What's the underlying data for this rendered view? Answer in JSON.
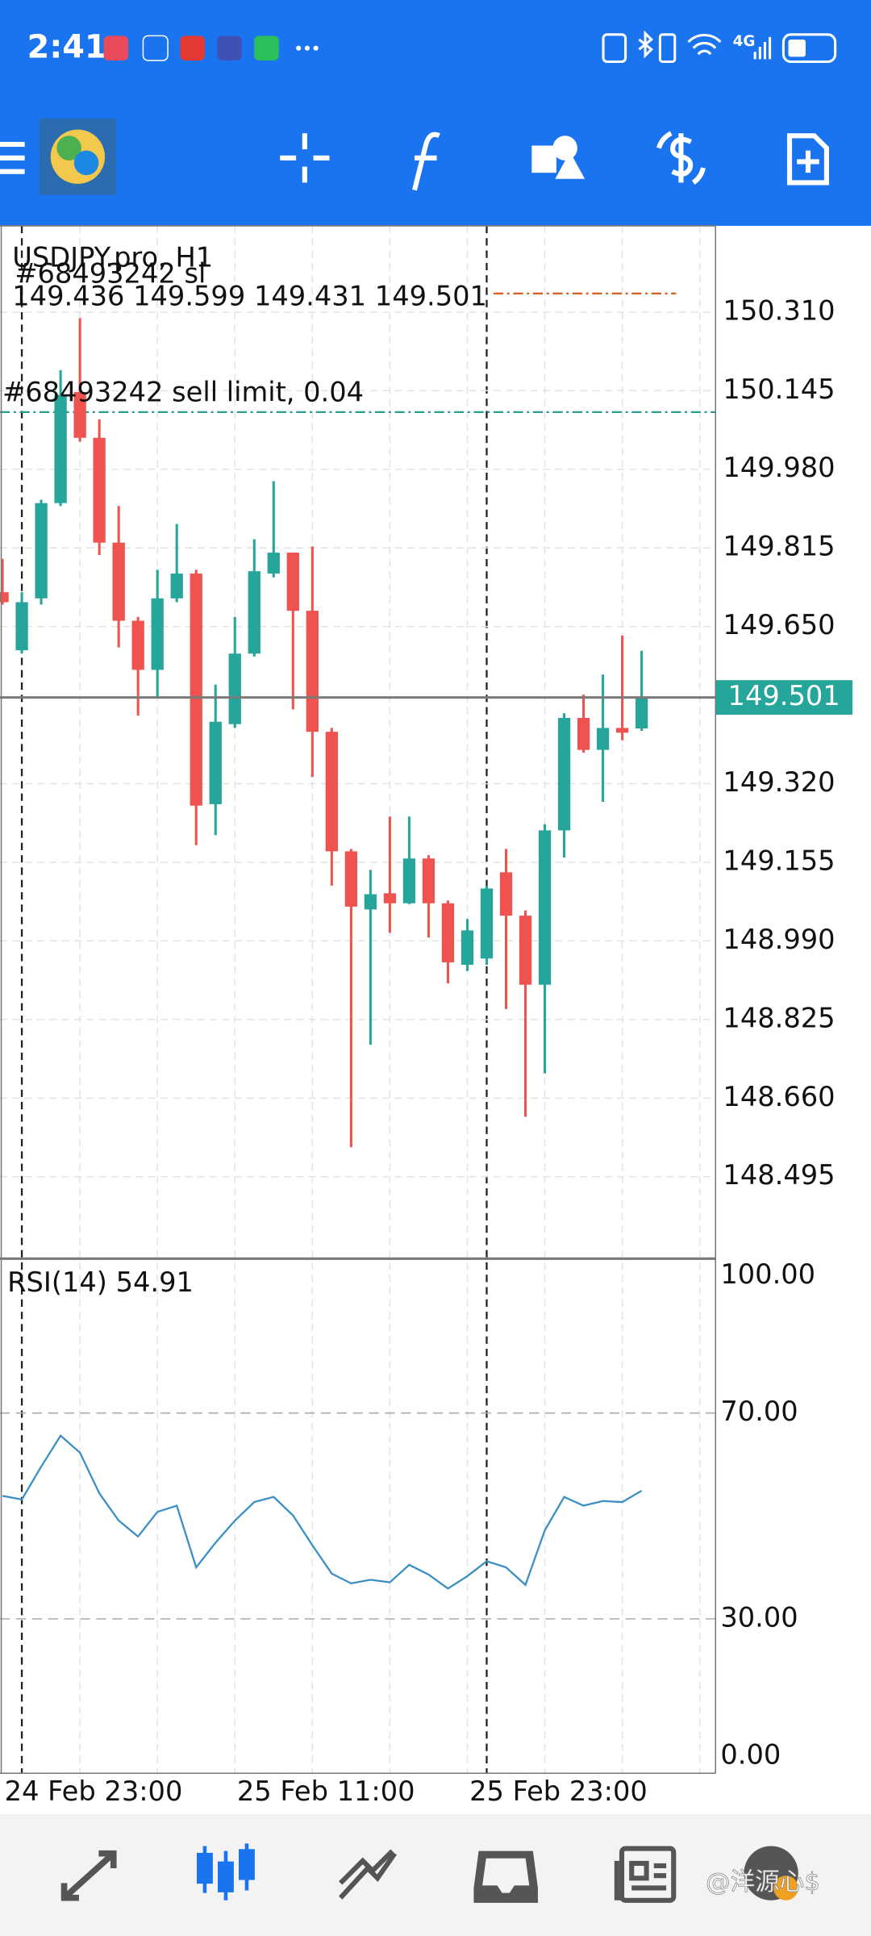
{
  "status_bar": {
    "time": "2:41",
    "network": "4G"
  },
  "watermark": "@洋源心$",
  "chart_data": [
    {
      "type": "candlestick",
      "title": "USDJPY.pro, H1",
      "categories": [
        null,
        "24 Feb 23:00",
        null,
        null,
        null,
        null,
        null,
        null,
        null,
        null,
        null,
        null,
        null,
        "25 Feb 11:00",
        null,
        null,
        null,
        null,
        null,
        null,
        null,
        null,
        null,
        null,
        null,
        "25 Feb 23:00",
        null,
        null,
        null,
        null,
        null,
        null,
        null,
        null
      ],
      "open": [
        149.722,
        149.6,
        149.709,
        149.909,
        150.142,
        150.046,
        149.826,
        149.662,
        149.559,
        149.709,
        149.761,
        149.277,
        149.445,
        149.593,
        149.761,
        149.805,
        149.683,
        149.429,
        149.178,
        149.056,
        149.09,
        149.069,
        149.163,
        149.069,
        148.94,
        148.953,
        149.134,
        149.043,
        148.898,
        149.222,
        149.458,
        149.391,
        149.437,
        149.436
      ],
      "high": [
        149.792,
        149.722,
        149.916,
        150.188,
        150.297,
        150.085,
        149.903,
        149.67,
        149.769,
        149.865,
        149.769,
        149.528,
        149.67,
        149.833,
        149.955,
        149.805,
        149.818,
        149.437,
        149.183,
        149.139,
        149.251,
        149.251,
        149.17,
        149.075,
        149.036,
        149.106,
        149.183,
        149.054,
        149.235,
        149.468,
        149.507,
        149.549,
        149.631,
        149.599
      ],
      "low": [
        149.696,
        149.593,
        149.696,
        149.903,
        150.038,
        149.8,
        149.606,
        149.463,
        149.502,
        149.701,
        149.191,
        149.212,
        149.437,
        149.587,
        149.753,
        149.476,
        149.334,
        149.106,
        148.557,
        148.772,
        149.007,
        149.067,
        148.997,
        148.901,
        148.927,
        148.94,
        148.847,
        148.621,
        148.712,
        149.165,
        149.385,
        149.282,
        149.411,
        149.431
      ],
      "close": [
        149.701,
        149.701,
        149.909,
        150.136,
        150.046,
        149.826,
        149.662,
        149.559,
        149.709,
        149.761,
        149.274,
        149.45,
        149.593,
        149.766,
        149.805,
        149.683,
        149.429,
        149.178,
        149.062,
        149.088,
        149.069,
        149.163,
        149.069,
        148.945,
        149.012,
        149.1,
        149.043,
        148.898,
        149.222,
        149.458,
        149.391,
        149.437,
        149.427,
        149.501
      ],
      "up_color": "#26a69a",
      "down_color": "#ef5350",
      "ylim": [
        148.323,
        150.491
      ],
      "yticks": [
        148.495,
        {
          "value": 148.66,
          "label": "148.660"
        },
        148.825,
        {
          "value": 148.99,
          "label": "148.990"
        },
        149.155,
        {
          "value": 149.32,
          "label": "149.320"
        },
        {
          "value": 149.65,
          "label": "149.650"
        },
        149.815,
        {
          "value": 149.98,
          "label": "149.980"
        },
        150.145,
        {
          "value": 150.31,
          "label": "150.310"
        }
      ],
      "grid": true,
      "orders": [
        {
          "label": "#68493242 sl",
          "price": 150.349,
          "color": "#d9622b"
        },
        {
          "label": "#68493242 sell limit, 0.04",
          "price": 150.1,
          "color": "#2a9d8f"
        }
      ]
    },
    {
      "type": "line",
      "title": "RSI(14)",
      "values": [
        53.9,
        53.2,
        59.6,
        65.6,
        62.3,
        54.4,
        49.1,
        46.0,
        50.8,
        52.0,
        40.0,
        44.8,
        49.1,
        52.7,
        53.7,
        50.1,
        44.3,
        38.8,
        36.9,
        37.6,
        37.1,
        40.5,
        38.6,
        35.9,
        38.3,
        41.2,
        40.0,
        36.6,
        47.2,
        53.7,
        52.0,
        52.9,
        52.7,
        54.91
      ],
      "color": "#3a8fc4",
      "ylim": [
        0,
        100
      ],
      "yticks": [
        {
          "value": 0,
          "label": "0.00"
        },
        {
          "value": 30,
          "label": "30.00"
        },
        {
          "value": 70,
          "label": "70.00"
        },
        {
          "value": 100,
          "label": "100.00"
        }
      ],
      "grid": true
    }
  ]
}
